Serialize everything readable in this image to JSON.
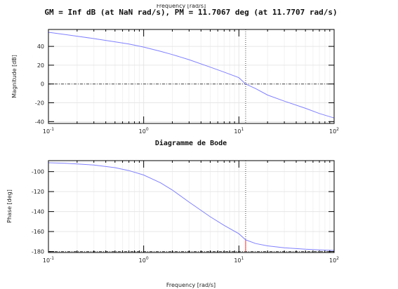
{
  "header": {
    "stability_margins": "GM = Inf dB (at NaN rad/s),   PM = 11.7067 deg (at 11.7707 rad/s)",
    "cut_top_label": "Frequency [rad/s]"
  },
  "chart_data": [
    {
      "type": "line",
      "panel": "magnitude",
      "xscale": "log",
      "xlim": [
        0.1,
        100
      ],
      "ylim": [
        -42,
        58
      ],
      "ylabel": "Magnitude [dB]",
      "xlabel": "Diagramme de Bode",
      "xtick_values": [
        0.1,
        1,
        10,
        100
      ],
      "xtick_labels": [
        {
          "base": "10",
          "exp": "-1"
        },
        {
          "base": "10",
          "exp": "0"
        },
        {
          "base": "10",
          "exp": "1"
        },
        {
          "base": "10",
          "exp": "2"
        }
      ],
      "yticks": [
        -40,
        -20,
        0,
        20,
        40
      ],
      "grid": true,
      "series": [
        {
          "color": "#8080ff",
          "x": [
            0.1,
            0.15,
            0.2,
            0.3,
            0.5,
            0.7,
            1,
            1.5,
            2,
            3,
            5,
            7,
            10,
            11.77,
            15,
            20,
            30,
            50,
            70,
            100
          ],
          "y": [
            55,
            52.6,
            50.8,
            48.3,
            44.9,
            42.5,
            39.3,
            34.8,
            31.3,
            25.8,
            17.9,
            12.6,
            6.7,
            0,
            -4.9,
            -11.8,
            -18.3,
            -25.9,
            -31.4,
            -36.2
          ]
        }
      ],
      "reference_line": {
        "y": 0,
        "color": "#444444",
        "style": "dash-dot"
      },
      "marker_line": {
        "x": 11.7707,
        "color": "#444444",
        "style": "dotted"
      }
    },
    {
      "type": "line",
      "panel": "phase",
      "xscale": "log",
      "xlim": [
        0.1,
        100
      ],
      "ylim": [
        -181,
        -89
      ],
      "ylabel": "Phase [deg]",
      "xlabel": "Frequency [rad/s]",
      "xtick_values": [
        0.1,
        1,
        10,
        100
      ],
      "xtick_labels": [
        {
          "base": "10",
          "exp": "-1"
        },
        {
          "base": "10",
          "exp": "0"
        },
        {
          "base": "10",
          "exp": "1"
        },
        {
          "base": "10",
          "exp": "2"
        }
      ],
      "yticks": [
        -180,
        -160,
        -140,
        -120,
        -100
      ],
      "grid": true,
      "series": [
        {
          "color": "#8080ff",
          "x": [
            0.1,
            0.15,
            0.2,
            0.3,
            0.5,
            0.7,
            1,
            1.5,
            2,
            3,
            5,
            7,
            10,
            11.77,
            15,
            20,
            30,
            50,
            70,
            100
          ],
          "y": [
            -91.1,
            -91.7,
            -92.3,
            -93.4,
            -96,
            -99,
            -103.4,
            -111.2,
            -118.4,
            -130.5,
            -145.2,
            -153.8,
            -162.2,
            -168.3,
            -172,
            -174.3,
            -176.2,
            -177.7,
            -178.3,
            -178.9
          ]
        }
      ],
      "reference_line": {
        "y": -180,
        "color": "#444444",
        "style": "dash-dot"
      },
      "marker_line": {
        "x": 11.7707,
        "color": "#444444",
        "style": "dotted"
      },
      "margin_segment": {
        "x": 11.7707,
        "y_from": -180,
        "y_to": -168.3,
        "color": "#ff3333"
      }
    }
  ]
}
